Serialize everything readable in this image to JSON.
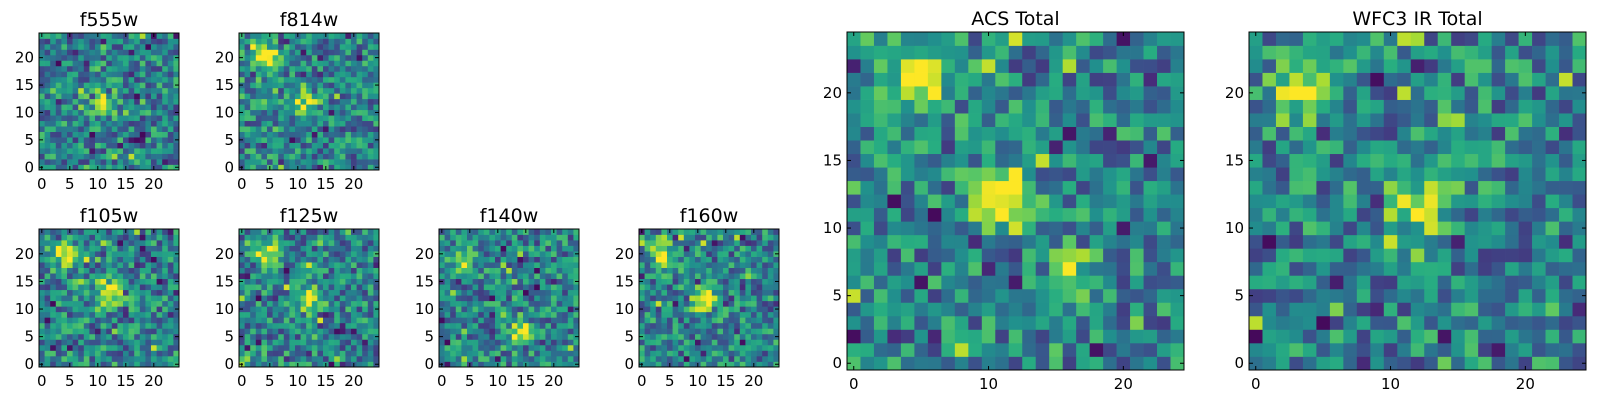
{
  "chart_data": [
    {
      "type": "heatmap",
      "title": "f555w",
      "grid_size": [
        25,
        25
      ],
      "xlim": [
        -0.5,
        24.5
      ],
      "ylim": [
        -0.5,
        24.5
      ],
      "xticks": [
        0,
        5,
        10,
        15,
        20
      ],
      "yticks": [
        0,
        5,
        10,
        15,
        20
      ],
      "colormap": "viridis",
      "origin": "lower",
      "features": [
        {
          "x": 11,
          "y": 12,
          "intensity": "moderate"
        }
      ]
    },
    {
      "type": "heatmap",
      "title": "f814w",
      "grid_size": [
        25,
        25
      ],
      "xlim": [
        -0.5,
        24.5
      ],
      "ylim": [
        -0.5,
        24.5
      ],
      "xticks": [
        0,
        5,
        10,
        15,
        20
      ],
      "yticks": [
        0,
        5,
        10,
        15,
        20
      ],
      "colormap": "viridis",
      "origin": "lower",
      "features": [
        {
          "x": 4,
          "y": 20,
          "intensity": "high"
        },
        {
          "x": 11,
          "y": 12,
          "intensity": "high"
        }
      ]
    },
    {
      "type": "heatmap",
      "title": "f105w",
      "grid_size": [
        25,
        25
      ],
      "xlim": [
        -0.5,
        24.5
      ],
      "ylim": [
        -0.5,
        24.5
      ],
      "xticks": [
        0,
        5,
        10,
        15,
        20
      ],
      "yticks": [
        0,
        5,
        10,
        15,
        20
      ],
      "colormap": "viridis",
      "origin": "lower",
      "features": [
        {
          "x": 4,
          "y": 20,
          "intensity": "high"
        },
        {
          "x": 12,
          "y": 13,
          "intensity": "high"
        }
      ]
    },
    {
      "type": "heatmap",
      "title": "f125w",
      "grid_size": [
        25,
        25
      ],
      "xlim": [
        -0.5,
        24.5
      ],
      "ylim": [
        -0.5,
        24.5
      ],
      "xticks": [
        0,
        5,
        10,
        15,
        20
      ],
      "yticks": [
        0,
        5,
        10,
        15,
        20
      ],
      "colormap": "viridis",
      "origin": "lower",
      "features": [
        {
          "x": 4,
          "y": 20,
          "intensity": "high"
        },
        {
          "x": 12,
          "y": 12,
          "intensity": "high"
        }
      ]
    },
    {
      "type": "heatmap",
      "title": "f140w",
      "grid_size": [
        25,
        25
      ],
      "xlim": [
        -0.5,
        24.5
      ],
      "ylim": [
        -0.5,
        24.5
      ],
      "xticks": [
        0,
        5,
        10,
        15,
        20
      ],
      "yticks": [
        0,
        5,
        10,
        15,
        20
      ],
      "colormap": "viridis",
      "origin": "lower",
      "features": [
        {
          "x": 14,
          "y": 6,
          "intensity": "high"
        },
        {
          "x": 4,
          "y": 19,
          "intensity": "moderate"
        }
      ]
    },
    {
      "type": "heatmap",
      "title": "f160w",
      "grid_size": [
        25,
        25
      ],
      "xlim": [
        -0.5,
        24.5
      ],
      "ylim": [
        -0.5,
        24.5
      ],
      "xticks": [
        0,
        5,
        10,
        15,
        20
      ],
      "yticks": [
        0,
        5,
        10,
        15,
        20
      ],
      "colormap": "viridis",
      "origin": "lower",
      "features": [
        {
          "x": 4,
          "y": 20,
          "intensity": "high"
        },
        {
          "x": 11,
          "y": 12,
          "intensity": "high"
        }
      ]
    },
    {
      "type": "heatmap",
      "title": "ACS Total",
      "grid_size": [
        25,
        25
      ],
      "xlim": [
        -0.5,
        24.5
      ],
      "ylim": [
        -0.5,
        24.5
      ],
      "xticks": [
        0,
        10,
        20
      ],
      "yticks": [
        0,
        5,
        10,
        15,
        20
      ],
      "colormap": "viridis",
      "origin": "lower",
      "features": [
        {
          "x": 5,
          "y": 21,
          "intensity": "high"
        },
        {
          "x": 11,
          "y": 12,
          "intensity": "high"
        },
        {
          "x": 16,
          "y": 6,
          "intensity": "moderate"
        }
      ]
    },
    {
      "type": "heatmap",
      "title": "WFC3 IR Total",
      "grid_size": [
        25,
        25
      ],
      "xlim": [
        -0.5,
        24.5
      ],
      "ylim": [
        -0.5,
        24.5
      ],
      "xticks": [
        0,
        10,
        20
      ],
      "yticks": [
        0,
        5,
        10,
        15,
        20
      ],
      "colormap": "viridis",
      "origin": "lower",
      "features": [
        {
          "x": 4,
          "y": 20,
          "intensity": "high"
        },
        {
          "x": 12,
          "y": 12,
          "intensity": "high"
        }
      ]
    }
  ]
}
